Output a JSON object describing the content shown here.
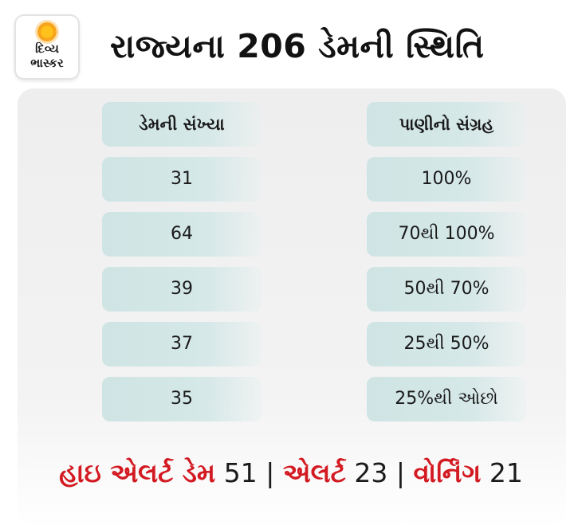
{
  "logo": {
    "line1": "દિવ્ય",
    "line2": "ભાસ્કર"
  },
  "title": "રાજ્યના 206 ડેમની સ્થિતિ",
  "table": {
    "headers": [
      "ડેમની સંખ્યા",
      "પાણીનો સંગ્રહ"
    ],
    "rows": [
      {
        "count": "31",
        "storage": "100%"
      },
      {
        "count": "64",
        "storage": "70થી 100%"
      },
      {
        "count": "39",
        "storage": "50થી 70%"
      },
      {
        "count": "37",
        "storage": "25થી 50%"
      },
      {
        "count": "35",
        "storage": "25%થી ઓછો"
      }
    ]
  },
  "footer": {
    "high_alert_label": "હાઇ એલર્ટ ડેમ",
    "high_alert_value": "51",
    "sep": "|",
    "alert_label": "એલર્ટ",
    "alert_value": "23",
    "warning_label": "વોર્નિંગ",
    "warning_value": "21"
  },
  "colors": {
    "accent_red": "#d31a22",
    "cell_bg": "#cfe4e4",
    "logo_sun": "#f7a51c"
  }
}
